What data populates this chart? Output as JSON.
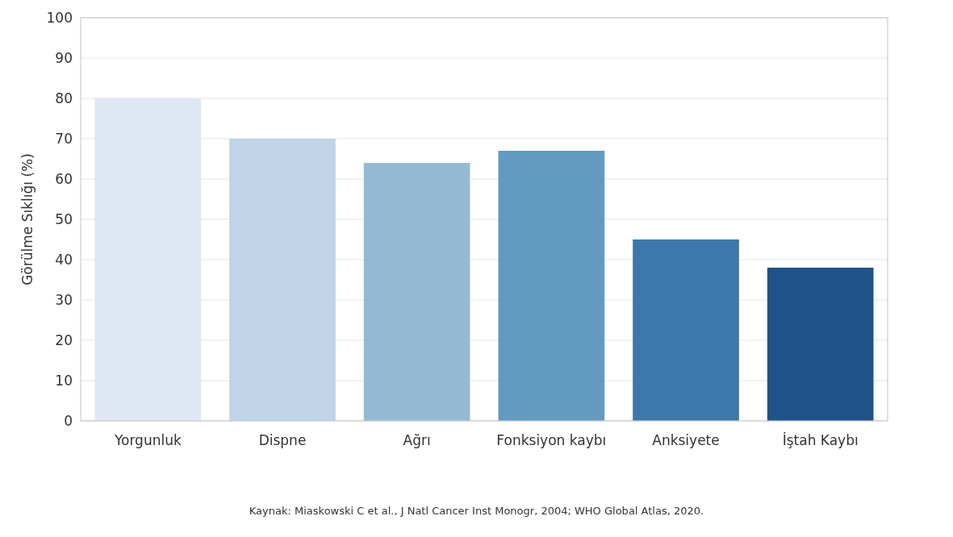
{
  "chart_data": {
    "type": "bar",
    "ylabel": "Görülme Sıklığı (%)",
    "categories": [
      "Yorgunluk",
      "Dispne",
      "Ağrı",
      "Fonksiyon kaybı",
      "Anksiyete",
      "İştah Kaybı"
    ],
    "values": [
      80,
      70,
      64,
      67,
      45,
      38
    ],
    "colors": [
      "#dee7f2",
      "#bfd4e6",
      "#94bad3",
      "#629ac0",
      "#3c78a9",
      "#1f5289"
    ],
    "ylim": [
      0,
      100
    ],
    "yticks": [
      0,
      10,
      20,
      30,
      40,
      50,
      60,
      70,
      80,
      90,
      100
    ],
    "grid": "y",
    "annotations": [
      "Kaynak: Miaskowski C et al., J Natl Cancer Inst Monogr, 2004; WHO Global Atlas, 2020."
    ]
  }
}
